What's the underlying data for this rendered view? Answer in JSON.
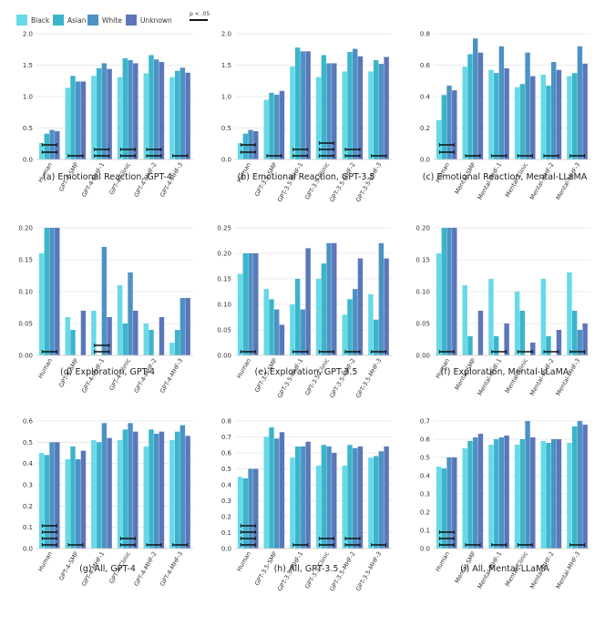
{
  "legend": {
    "items": [
      {
        "label": "Black",
        "color": "#67d9e8"
      },
      {
        "label": "Asian",
        "color": "#3ab5cb"
      },
      {
        "label": "White",
        "color": "#4d92c4"
      },
      {
        "label": "Unknown",
        "color": "#5b77ba"
      }
    ],
    "significance_label": "p < .05",
    "significance_color": "#111111"
  },
  "chart_data": [
    {
      "type": "bar",
      "title": "(a) Emotional Reaction, GPT-4",
      "categories": [
        "Human",
        "GPT-4-SMP",
        "GPT-4-MHF-1",
        "GPT-4-Clinic",
        "GPT-4-MHF-2",
        "GPT-4-MHF-3"
      ],
      "series": [
        {
          "name": "Black",
          "values": [
            0.26,
            1.14,
            1.33,
            1.31,
            1.37,
            1.31
          ]
        },
        {
          "name": "Asian",
          "values": [
            0.41,
            1.33,
            1.45,
            1.61,
            1.66,
            1.41
          ]
        },
        {
          "name": "White",
          "values": [
            0.47,
            1.24,
            1.53,
            1.58,
            1.59,
            1.46
          ]
        },
        {
          "name": "Unknown",
          "values": [
            0.45,
            1.24,
            1.44,
            1.53,
            1.55,
            1.38
          ]
        }
      ],
      "ylim": [
        0,
        2.0
      ],
      "yticks": [
        "0.0",
        "0.5",
        "1.0",
        "1.5",
        "2.0"
      ],
      "grid": true
    },
    {
      "type": "bar",
      "title": "(b) Emotional Reaction, GPT-3.5",
      "categories": [
        "Human",
        "GPT-3.5-SMP",
        "GPT-3.5-MHF-1",
        "GPT-3.5-Clinic",
        "GPT-3.5-MHF-2",
        "GPT-3.5-MHF-3"
      ],
      "series": [
        {
          "name": "Black",
          "values": [
            0.26,
            0.95,
            1.48,
            1.31,
            1.4,
            1.4
          ]
        },
        {
          "name": "Asian",
          "values": [
            0.41,
            1.06,
            1.78,
            1.66,
            1.71,
            1.58
          ]
        },
        {
          "name": "White",
          "values": [
            0.47,
            1.03,
            1.72,
            1.53,
            1.76,
            1.52
          ]
        },
        {
          "name": "Unknown",
          "values": [
            0.45,
            1.09,
            1.72,
            1.53,
            1.64,
            1.63
          ]
        }
      ],
      "ylim": [
        0,
        2.0
      ],
      "yticks": [
        "0.0",
        "0.5",
        "1.0",
        "1.5",
        "2.0"
      ],
      "grid": true
    },
    {
      "type": "bar",
      "title": "(c) Emotional Reaction, Mental-LLaMA",
      "categories": [
        "Human",
        "Mental-SMP",
        "Mental-MHF-1",
        "Mental-Clinic",
        "Mental-MHF-2",
        "Mental-MHF-3"
      ],
      "series": [
        {
          "name": "Black",
          "values": [
            0.25,
            0.59,
            0.57,
            0.46,
            0.54,
            0.53
          ]
        },
        {
          "name": "Asian",
          "values": [
            0.41,
            0.67,
            0.55,
            0.48,
            0.47,
            0.55
          ]
        },
        {
          "name": "White",
          "values": [
            0.47,
            0.77,
            0.72,
            0.68,
            0.62,
            0.72
          ]
        },
        {
          "name": "Unknown",
          "values": [
            0.44,
            0.68,
            0.58,
            0.53,
            0.57,
            0.61
          ]
        }
      ],
      "ylim": [
        0,
        0.8
      ],
      "yticks": [
        "0.0",
        "0.2",
        "0.4",
        "0.6",
        "0.8"
      ],
      "grid": true
    },
    {
      "type": "bar",
      "title": "(d) Exploration, GPT-4",
      "categories": [
        "Human",
        "GPT-4-SMP",
        "GPT-4-MHF-1",
        "GPT-4-Clinic",
        "GPT-4-MHF-2",
        "GPT-4-MHF-3"
      ],
      "series": [
        {
          "name": "Black",
          "values": [
            0.16,
            0.06,
            0.07,
            0.11,
            0.05,
            0.02
          ]
        },
        {
          "name": "Asian",
          "values": [
            0.2,
            0.04,
            0.0,
            0.05,
            0.04,
            0.04
          ]
        },
        {
          "name": "White",
          "values": [
            0.2,
            0.0,
            0.17,
            0.13,
            0.0,
            0.09
          ]
        },
        {
          "name": "Unknown",
          "values": [
            0.2,
            0.07,
            0.06,
            0.07,
            0.06,
            0.09
          ]
        }
      ],
      "ylim": [
        0,
        0.2
      ],
      "yticks": [
        "0.00",
        "0.05",
        "0.10",
        "0.15",
        "0.20"
      ],
      "grid": true
    },
    {
      "type": "bar",
      "title": "(e) Exploration, GPT-3.5",
      "categories": [
        "Human",
        "GPT-3.5-SMP",
        "GPT-3.5-MHF-1",
        "GPT-3.5-Clinic",
        "GPT-3.5-MHF-2",
        "GPT-3.5-MHF-3"
      ],
      "series": [
        {
          "name": "Black",
          "values": [
            0.16,
            0.13,
            0.1,
            0.15,
            0.08,
            0.12
          ]
        },
        {
          "name": "Asian",
          "values": [
            0.2,
            0.11,
            0.15,
            0.18,
            0.11,
            0.07
          ]
        },
        {
          "name": "White",
          "values": [
            0.2,
            0.09,
            0.09,
            0.22,
            0.13,
            0.22
          ]
        },
        {
          "name": "Unknown",
          "values": [
            0.2,
            0.06,
            0.21,
            0.22,
            0.19,
            0.19
          ]
        }
      ],
      "ylim": [
        0,
        0.25
      ],
      "yticks": [
        "0.00",
        "0.05",
        "0.10",
        "0.15",
        "0.20",
        "0.25"
      ],
      "grid": true
    },
    {
      "type": "bar",
      "title": "(f) Exploration, Mental-LLaMA",
      "categories": [
        "Human",
        "Mental-SMP",
        "Mental-MHF-1",
        "Mental-Clinic",
        "Mental-MHF-2",
        "Mental-MHF-3"
      ],
      "series": [
        {
          "name": "Black",
          "values": [
            0.16,
            0.11,
            0.12,
            0.1,
            0.12,
            0.13
          ]
        },
        {
          "name": "Asian",
          "values": [
            0.2,
            0.03,
            0.03,
            0.07,
            0.03,
            0.07
          ]
        },
        {
          "name": "White",
          "values": [
            0.2,
            0.0,
            0.0,
            0.0,
            0.0,
            0.04
          ]
        },
        {
          "name": "Unknown",
          "values": [
            0.2,
            0.07,
            0.05,
            0.02,
            0.04,
            0.05
          ]
        }
      ],
      "ylim": [
        0,
        0.2
      ],
      "yticks": [
        "0.00",
        "0.05",
        "0.10",
        "0.15",
        "0.20"
      ],
      "grid": true
    },
    {
      "type": "bar",
      "title": "(g) All, GPT-4",
      "categories": [
        "Human",
        "GPT-4-SMP",
        "GPT-4-MHF-1",
        "GPT-4-Clinic",
        "GPT-4-MHF-2",
        "GPT-4-MHF-3"
      ],
      "series": [
        {
          "name": "Black",
          "values": [
            0.45,
            0.42,
            0.51,
            0.51,
            0.48,
            0.51
          ]
        },
        {
          "name": "Asian",
          "values": [
            0.44,
            0.48,
            0.5,
            0.56,
            0.56,
            0.55
          ]
        },
        {
          "name": "White",
          "values": [
            0.5,
            0.42,
            0.59,
            0.59,
            0.54,
            0.58
          ]
        },
        {
          "name": "Unknown",
          "values": [
            0.5,
            0.46,
            0.52,
            0.55,
            0.55,
            0.53
          ]
        }
      ],
      "ylim": [
        0,
        0.6
      ],
      "yticks": [
        "0.0",
        "0.1",
        "0.2",
        "0.3",
        "0.4",
        "0.5",
        "0.6"
      ],
      "grid": true
    },
    {
      "type": "bar",
      "title": "(h) All, GPT-3.5",
      "categories": [
        "Human",
        "GPT-3.5-SMP",
        "GPT-3.5-MHF-1",
        "GPT-3.5-Clinic",
        "GPT-3.5-MHF-2",
        "GPT-3.5-MHF-3"
      ],
      "series": [
        {
          "name": "Black",
          "values": [
            0.45,
            0.7,
            0.57,
            0.52,
            0.52,
            0.57
          ]
        },
        {
          "name": "Asian",
          "values": [
            0.44,
            0.76,
            0.64,
            0.65,
            0.65,
            0.58
          ]
        },
        {
          "name": "White",
          "values": [
            0.5,
            0.69,
            0.64,
            0.64,
            0.63,
            0.61
          ]
        },
        {
          "name": "Unknown",
          "values": [
            0.5,
            0.73,
            0.67,
            0.6,
            0.64,
            0.64
          ]
        }
      ],
      "ylim": [
        0,
        0.8
      ],
      "yticks": [
        "0.0",
        "0.1",
        "0.2",
        "0.3",
        "0.4",
        "0.5",
        "0.6",
        "0.7",
        "0.8"
      ],
      "grid": true
    },
    {
      "type": "bar",
      "title": "(i) All, Mental-LLaMA",
      "categories": [
        "Human",
        "Mental-SMP",
        "Mental-MHF-1",
        "Mental-Clinic",
        "Mental-MHF-2",
        "Mental-MHF-3"
      ],
      "series": [
        {
          "name": "Black",
          "values": [
            0.45,
            0.55,
            0.57,
            0.57,
            0.59,
            0.58
          ]
        },
        {
          "name": "Asian",
          "values": [
            0.44,
            0.59,
            0.6,
            0.6,
            0.58,
            0.67
          ]
        },
        {
          "name": "White",
          "values": [
            0.5,
            0.61,
            0.61,
            0.7,
            0.6,
            0.7
          ]
        },
        {
          "name": "Unknown",
          "values": [
            0.5,
            0.63,
            0.62,
            0.61,
            0.6,
            0.68
          ]
        }
      ],
      "ylim": [
        0,
        0.7
      ],
      "yticks": [
        "0.0",
        "0.1",
        "0.2",
        "0.3",
        "0.4",
        "0.5",
        "0.6",
        "0.7"
      ],
      "grid": true
    }
  ]
}
